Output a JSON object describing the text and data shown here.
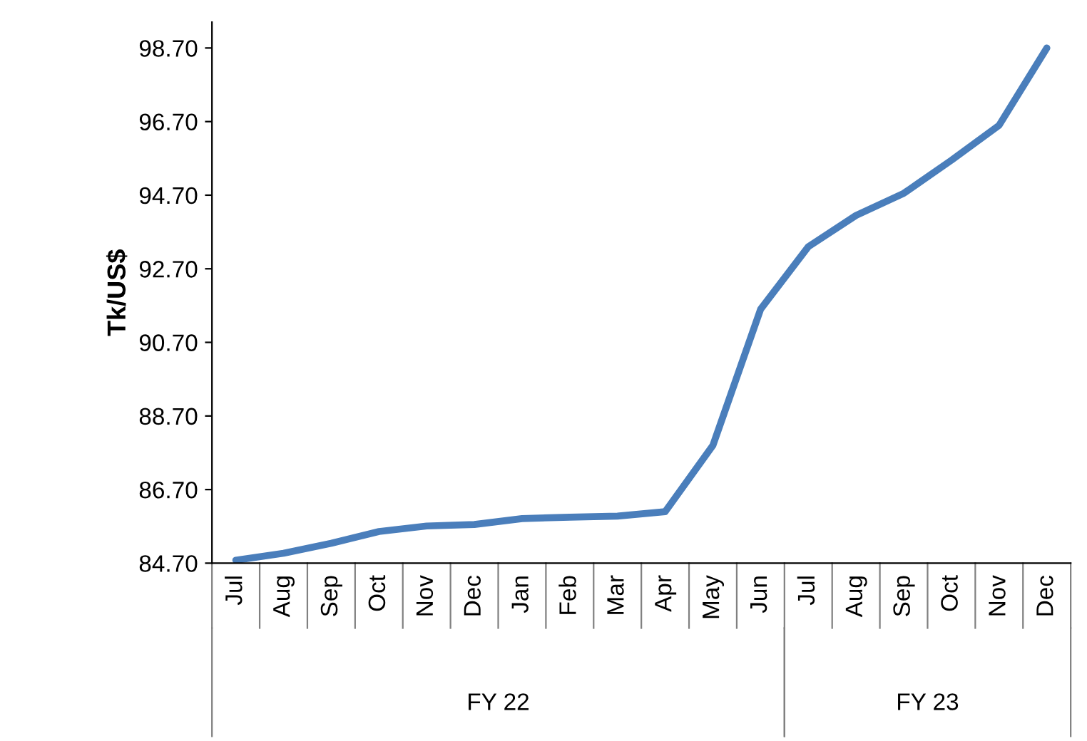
{
  "chart_data": {
    "type": "line",
    "ylabel": "Tk/US$",
    "categories": [
      "Jul",
      "Aug",
      "Sep",
      "Oct",
      "Nov",
      "Dec",
      "Jan",
      "Feb",
      "Mar",
      "Apr",
      "May",
      "Jun",
      "Jul",
      "Aug",
      "Sep",
      "Oct",
      "Nov",
      "Dec"
    ],
    "series": [
      {
        "color": "#4a7ebb",
        "values": [
          84.78,
          84.97,
          85.24,
          85.56,
          85.71,
          85.75,
          85.91,
          85.95,
          85.98,
          86.1,
          87.9,
          91.6,
          93.3,
          94.15,
          94.75,
          95.65,
          96.6,
          98.7
        ]
      }
    ],
    "ylim": [
      84.7,
      99.4
    ],
    "yticks": [
      {
        "value": 84.7,
        "label": "84.70"
      },
      {
        "value": 86.7,
        "label": "86.70"
      },
      {
        "value": 88.7,
        "label": "88.70"
      },
      {
        "value": 90.7,
        "label": "90.70"
      },
      {
        "value": 92.7,
        "label": "92.70"
      },
      {
        "value": 94.7,
        "label": "94.70"
      },
      {
        "value": 96.7,
        "label": "96.70"
      },
      {
        "value": 98.7,
        "label": "98.70"
      }
    ],
    "annotations": [
      "FY 22",
      "FY 23"
    ],
    "grid": false,
    "legend": false,
    "marker": "none",
    "line_style": "solid"
  }
}
